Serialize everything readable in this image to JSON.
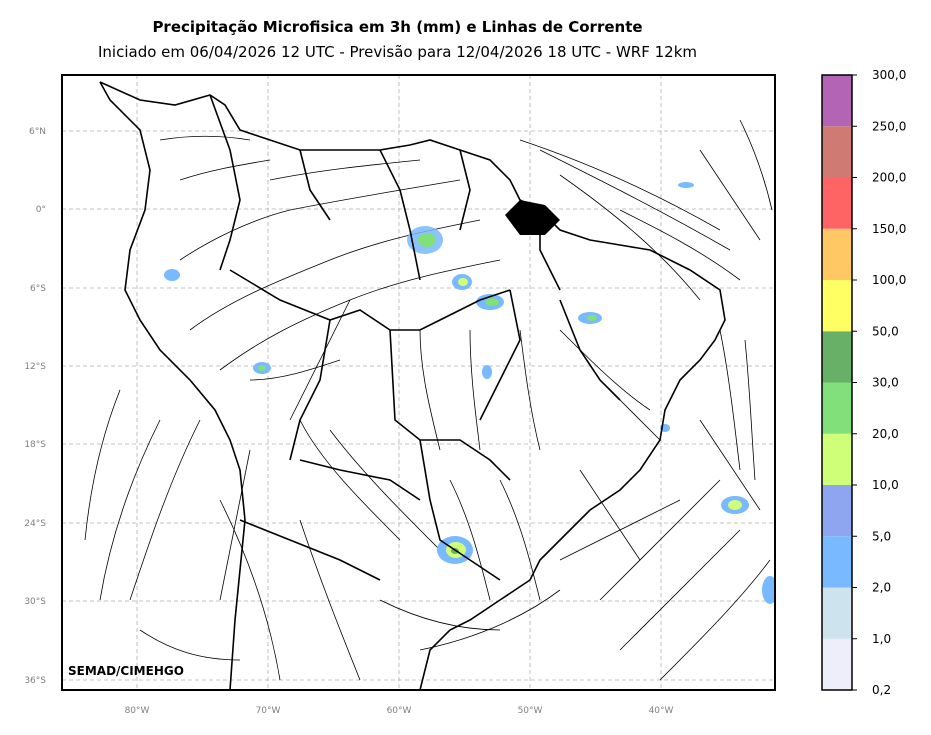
{
  "header": {
    "title": "Precipitação Microfisica em 3h (mm) e Linhas de Corrente",
    "subtitle": "Iniciado em 06/04/2026 12 UTC - Previsão para 12/04/2026 18 UTC - WRF 12km"
  },
  "map": {
    "lat_labels": [
      "6°N",
      "0°",
      "6°S",
      "12°S",
      "18°S",
      "24°S",
      "30°S",
      "36°S"
    ],
    "lon_labels": [
      "80°W",
      "70°W",
      "60°W",
      "50°W",
      "40°W"
    ],
    "credit": "SEMAD/CIMEHGO"
  },
  "colorbar": {
    "labels": [
      "0,2",
      "1,0",
      "2,0",
      "5,0",
      "10,0",
      "20,0",
      "30,0",
      "50,0",
      "100,0",
      "150,0",
      "200,0",
      "250,0",
      "300,0"
    ],
    "colors": [
      "#eeeefa",
      "#cde4ee",
      "#78b9ff",
      "#8ea5ef",
      "#cfff78",
      "#82e07a",
      "#68b067",
      "#ffff64",
      "#ffc864",
      "#ff6464",
      "#d07a74",
      "#b464b4"
    ]
  }
}
